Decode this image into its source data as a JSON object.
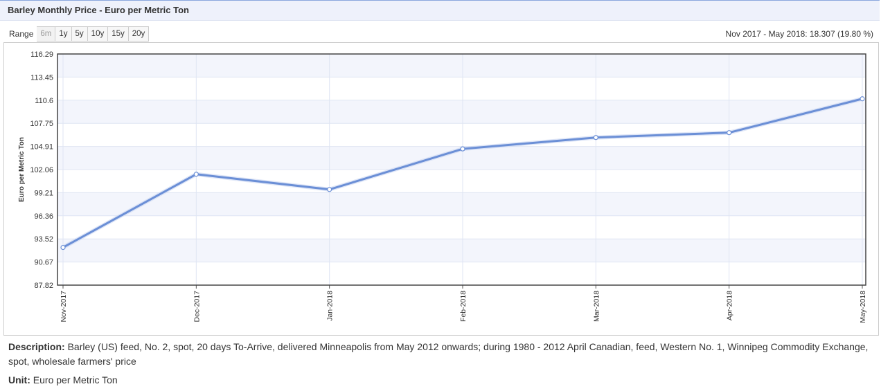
{
  "header": {
    "title": "Barley Monthly Price - Euro per Metric Ton"
  },
  "range": {
    "label": "Range",
    "buttons": [
      "6m",
      "1y",
      "5y",
      "10y",
      "15y",
      "20y"
    ],
    "selected": "6m"
  },
  "period_summary": "Nov 2017 - May 2018: 18.307 (19.80 %)",
  "chart_data": {
    "type": "line",
    "title": "",
    "xlabel": "",
    "ylabel": "Euro per Metric Ton",
    "categories": [
      "Nov-2017",
      "Dec-2017",
      "Jan-2018",
      "Feb-2018",
      "Mar-2018",
      "Apr-2018",
      "May-2018"
    ],
    "series": [
      {
        "values": [
          92.46,
          101.48,
          99.6,
          104.6,
          106.0,
          106.6,
          110.77
        ]
      }
    ],
    "ylim": [
      87.82,
      116.29
    ],
    "yticks": [
      "116.29",
      "113.45",
      "110.6",
      "107.75",
      "104.91",
      "102.06",
      "99.21",
      "96.36",
      "93.52",
      "90.67",
      "87.82"
    ],
    "grid": true,
    "line_color": "#6b8fd6"
  },
  "description": {
    "label": "Description:",
    "text": "Barley (US) feed, No. 2, spot, 20 days To-Arrive, delivered Minneapolis from May 2012 onwards; during 1980 - 2012 April Canadian, feed, Western No. 1, Winnipeg Commodity Exchange, spot, wholesale farmers' price"
  },
  "unit": {
    "label": "Unit:",
    "text": "Euro per Metric Ton"
  }
}
